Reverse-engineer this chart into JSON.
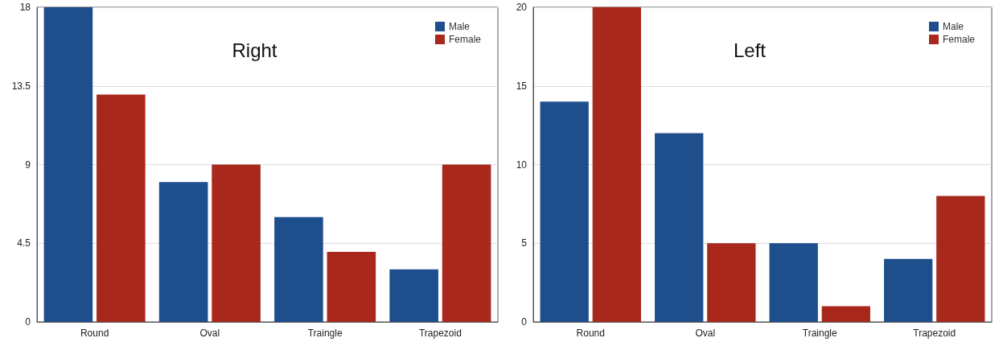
{
  "chart_data": [
    {
      "type": "bar",
      "title": "Right",
      "categories": [
        "Round",
        "Oval",
        "Traingle",
        "Trapezoid"
      ],
      "series": [
        {
          "name": "Male",
          "color": "#1f4e8c",
          "values": [
            18,
            8,
            6,
            3
          ]
        },
        {
          "name": "Female",
          "color": "#a8291b",
          "values": [
            13,
            9,
            4,
            9
          ]
        }
      ],
      "ylim": [
        0,
        18
      ],
      "yticks": [
        0,
        4.5,
        9,
        13.5,
        18
      ],
      "grid": "y",
      "legend": "top right"
    },
    {
      "type": "bar",
      "title": "Left",
      "categories": [
        "Round",
        "Oval",
        "Traingle",
        "Trapezoid"
      ],
      "series": [
        {
          "name": "Male",
          "color": "#1f4e8c",
          "values": [
            14,
            12,
            5,
            4
          ]
        },
        {
          "name": "Female",
          "color": "#a8291b",
          "values": [
            20,
            5,
            1,
            8
          ]
        }
      ],
      "ylim": [
        0,
        20
      ],
      "yticks": [
        0,
        5,
        10,
        15,
        20
      ],
      "grid": "y",
      "legend": "top right"
    }
  ]
}
